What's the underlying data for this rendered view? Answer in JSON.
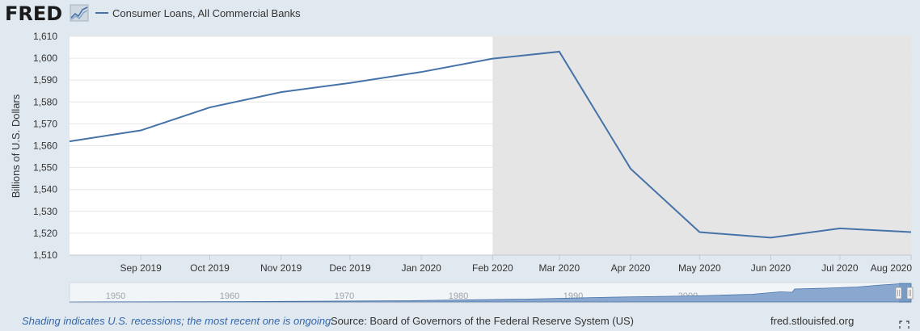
{
  "header": {
    "logo_text": "FRED",
    "logo_icon": "fred-chart-icon"
  },
  "chart_data": {
    "type": "line",
    "title": "",
    "xlabel": "",
    "ylabel": "Billions of U.S. Dollars",
    "ylim": [
      1510,
      1610
    ],
    "y_ticks": [
      "1,510",
      "1,520",
      "1,530",
      "1,540",
      "1,550",
      "1,560",
      "1,570",
      "1,580",
      "1,590",
      "1,600",
      "1,610"
    ],
    "x": [
      "2019-08-01",
      "2019-09-01",
      "2019-10-01",
      "2019-11-01",
      "2019-12-01",
      "2020-01-01",
      "2020-02-01",
      "2020-03-01",
      "2020-04-01",
      "2020-05-01",
      "2020-06-01",
      "2020-07-01",
      "2020-08-01"
    ],
    "x_tick_labels": [
      "Sep 2019",
      "Oct 2019",
      "Nov 2019",
      "Dec 2019",
      "Jan 2020",
      "Feb 2020",
      "Mar 2020",
      "Apr 2020",
      "May 2020",
      "Jun 2020",
      "Jul 2020",
      "Aug 2020"
    ],
    "series": [
      {
        "name": "Consumer Loans, All Commercial Banks",
        "color": "#4572a7",
        "values": [
          1562,
          1567,
          1577.5,
          1584.5,
          1588.7,
          1593.7,
          1599.8,
          1603,
          1549.5,
          1520.5,
          1518,
          1522.2,
          1520.5
        ]
      }
    ],
    "recession_shading": {
      "start": "2020-02-01",
      "end": "2020-08-01",
      "color": "#e5e5e5"
    },
    "grid": true,
    "legend_position": "top-left"
  },
  "navigator": {
    "years": [
      "1950",
      "1960",
      "1970",
      "1980",
      "1990",
      "2000",
      "2010"
    ]
  },
  "footer": {
    "recession_note": "Shading indicates U.S. recessions; the most recent one is ongoing.",
    "source": "Source: Board of Governors of the Federal Reserve System (US)",
    "site": "fred.stlouisfed.org"
  },
  "colors": {
    "background": "#e1e9f0",
    "plot_background": "#ffffff",
    "line": "#4572a7",
    "recession": "#e5e5e5",
    "navigator_fill": "#8aa8cf"
  }
}
